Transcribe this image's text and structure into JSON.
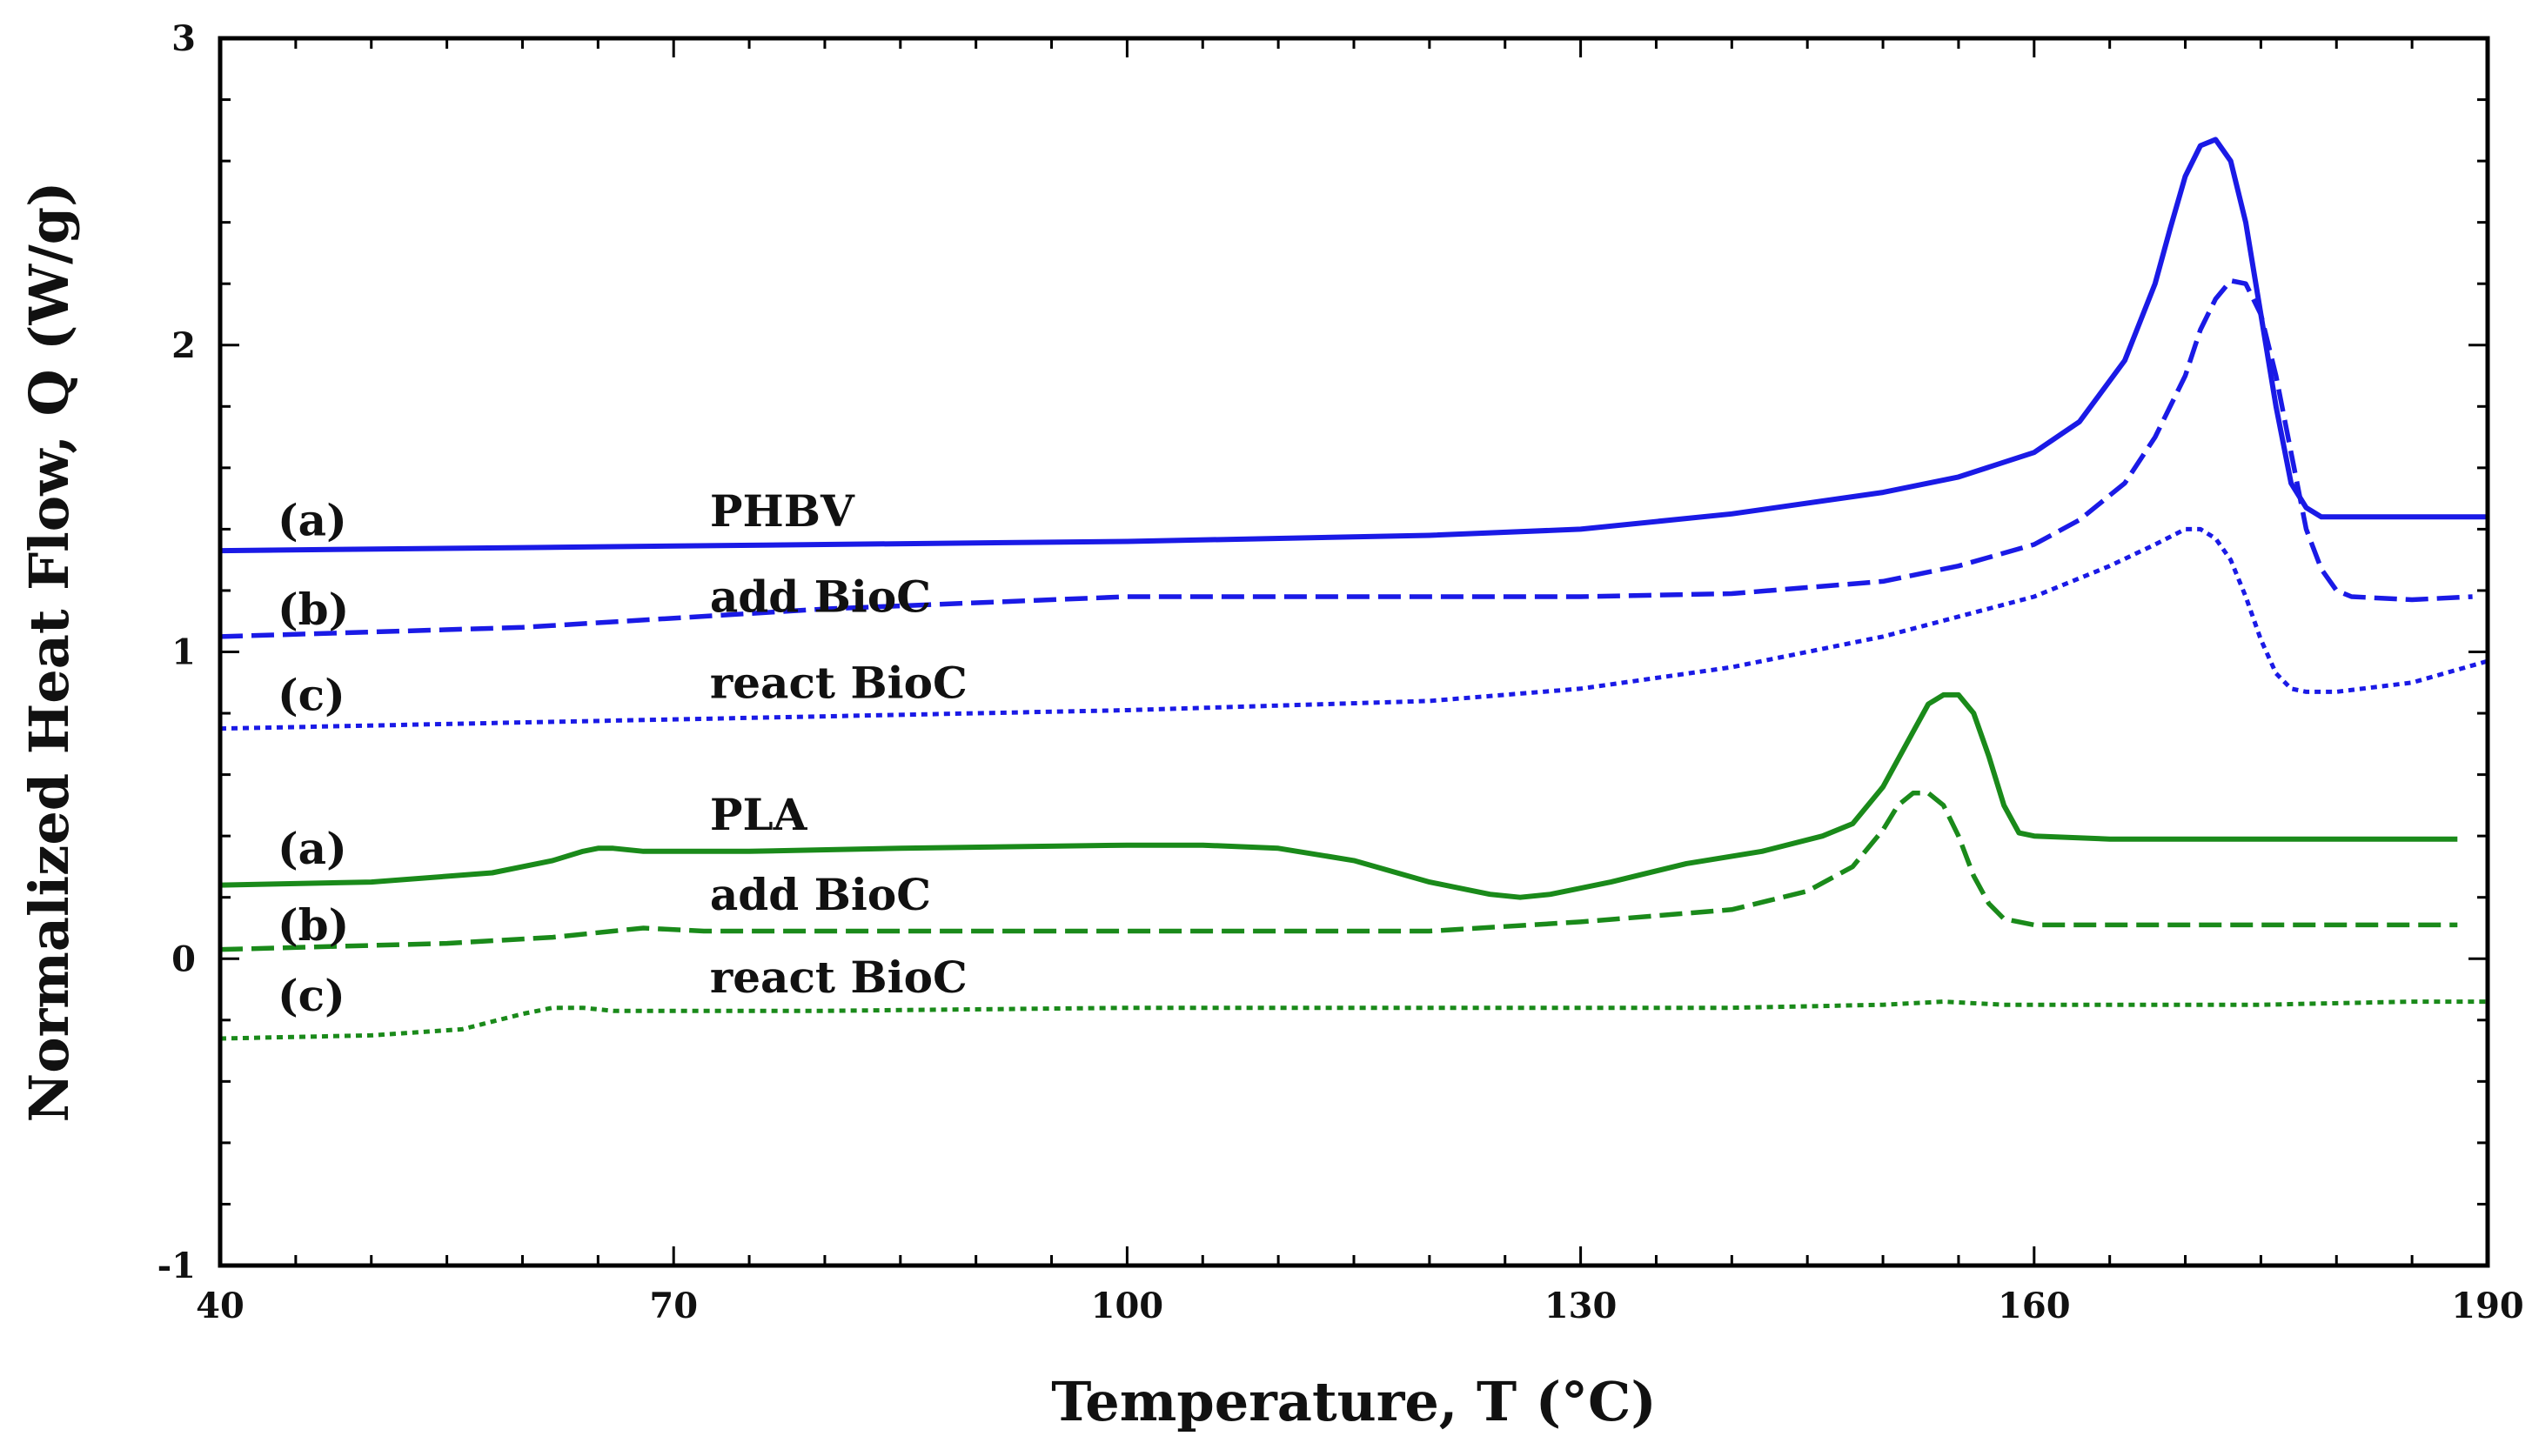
{
  "chart_data": {
    "type": "line",
    "title": "",
    "xlabel": "Temperature, T (°C)",
    "ylabel": "Normalized Heat Flow, Q (W/g)",
    "xlim": [
      40,
      190
    ],
    "ylim": [
      -1,
      3
    ],
    "x_ticks": [
      40,
      70,
      100,
      130,
      160,
      190
    ],
    "y_ticks": [
      -1,
      0,
      1,
      2,
      3
    ],
    "x_tick_labels": [
      "40",
      "70",
      "100",
      "130",
      "160",
      "190"
    ],
    "y_tick_labels": [
      "-1",
      "0",
      "1",
      "2",
      "3"
    ],
    "grid": false,
    "colors": {
      "phbv": "#1a1ae6",
      "pla": "#1a8a1a",
      "axis": "#000000"
    },
    "series": [
      {
        "name": "PHBV (a)",
        "group": "PHBV",
        "color": "#1a1ae6",
        "style": "solid",
        "x": [
          40,
          60,
          80,
          100,
          120,
          130,
          140,
          150,
          155,
          160,
          163,
          166,
          168,
          169,
          170,
          171,
          172,
          173,
          174,
          175,
          176,
          177,
          178,
          179,
          180,
          185,
          190
        ],
        "y": [
          1.33,
          1.34,
          1.35,
          1.36,
          1.38,
          1.4,
          1.45,
          1.52,
          1.57,
          1.65,
          1.75,
          1.95,
          2.2,
          2.38,
          2.55,
          2.65,
          2.67,
          2.6,
          2.4,
          2.1,
          1.8,
          1.55,
          1.47,
          1.44,
          1.44,
          1.44,
          1.44
        ]
      },
      {
        "name": "PHBV (b) add BioC",
        "group": "PHBV",
        "color": "#1a1ae6",
        "style": "dashed",
        "x": [
          40,
          60,
          80,
          100,
          120,
          130,
          140,
          150,
          155,
          160,
          163,
          166,
          168,
          170,
          171,
          172,
          173,
          174,
          175,
          176,
          177,
          178,
          179,
          180,
          181,
          185,
          189
        ],
        "y": [
          1.05,
          1.08,
          1.14,
          1.18,
          1.18,
          1.18,
          1.19,
          1.23,
          1.28,
          1.35,
          1.43,
          1.55,
          1.7,
          1.9,
          2.05,
          2.15,
          2.21,
          2.2,
          2.1,
          1.9,
          1.65,
          1.4,
          1.27,
          1.2,
          1.18,
          1.17,
          1.18
        ]
      },
      {
        "name": "PHBV (c) react BioC",
        "group": "PHBV",
        "color": "#1a1ae6",
        "style": "dotted",
        "x": [
          40,
          60,
          80,
          100,
          120,
          130,
          140,
          150,
          160,
          165,
          168,
          170,
          171,
          172,
          173,
          174,
          175,
          176,
          177,
          178,
          180,
          185,
          190
        ],
        "y": [
          0.75,
          0.77,
          0.79,
          0.81,
          0.84,
          0.88,
          0.95,
          1.05,
          1.18,
          1.28,
          1.35,
          1.4,
          1.4,
          1.37,
          1.3,
          1.18,
          1.04,
          0.93,
          0.88,
          0.87,
          0.87,
          0.9,
          0.97
        ]
      },
      {
        "name": "PLA (a)",
        "group": "PLA",
        "color": "#1a8a1a",
        "style": "solid",
        "x": [
          40,
          50,
          58,
          62,
          64,
          65,
          66,
          68,
          75,
          85,
          100,
          105,
          110,
          115,
          120,
          124,
          126,
          128,
          132,
          137,
          142,
          146,
          148,
          150,
          152,
          153,
          154,
          155,
          156,
          157,
          158,
          159,
          160,
          165,
          170,
          180,
          188
        ],
        "y": [
          0.24,
          0.25,
          0.28,
          0.32,
          0.35,
          0.36,
          0.36,
          0.35,
          0.35,
          0.36,
          0.37,
          0.37,
          0.36,
          0.32,
          0.25,
          0.21,
          0.2,
          0.21,
          0.25,
          0.31,
          0.35,
          0.4,
          0.44,
          0.56,
          0.74,
          0.83,
          0.86,
          0.86,
          0.8,
          0.66,
          0.5,
          0.41,
          0.4,
          0.39,
          0.39,
          0.39,
          0.39
        ]
      },
      {
        "name": "PLA (b) add BioC",
        "group": "PLA",
        "color": "#1a8a1a",
        "style": "dashed",
        "x": [
          40,
          55,
          62,
          66,
          68,
          72,
          80,
          100,
          120,
          130,
          140,
          145,
          148,
          150,
          151,
          152,
          153,
          154,
          155,
          156,
          157,
          158,
          160,
          170,
          180,
          188
        ],
        "y": [
          0.03,
          0.05,
          0.07,
          0.09,
          0.1,
          0.09,
          0.09,
          0.09,
          0.09,
          0.12,
          0.16,
          0.22,
          0.3,
          0.42,
          0.5,
          0.54,
          0.54,
          0.5,
          0.4,
          0.27,
          0.18,
          0.13,
          0.11,
          0.11,
          0.11,
          0.11
        ]
      },
      {
        "name": "PLA (c) react BioC",
        "group": "PLA",
        "color": "#1a8a1a",
        "style": "dotted",
        "x": [
          40,
          50,
          56,
          60,
          62,
          64,
          66,
          70,
          80,
          100,
          120,
          140,
          150,
          154,
          158,
          165,
          175,
          185,
          190
        ],
        "y": [
          -0.26,
          -0.25,
          -0.23,
          -0.18,
          -0.16,
          -0.16,
          -0.17,
          -0.17,
          -0.17,
          -0.16,
          -0.16,
          -0.16,
          -0.15,
          -0.14,
          -0.15,
          -0.15,
          -0.15,
          -0.14,
          -0.14
        ]
      }
    ],
    "annotations": [
      {
        "text": "(a)",
        "x": 43.8,
        "y": 1.38
      },
      {
        "text": "PHBV",
        "x": 72.4,
        "y": 1.41
      },
      {
        "text": "(b)",
        "x": 43.8,
        "y": 1.09
      },
      {
        "text": "add BioC",
        "x": 72.4,
        "y": 1.13
      },
      {
        "text": "(c)",
        "x": 43.8,
        "y": 0.81
      },
      {
        "text": "react BioC",
        "x": 72.4,
        "y": 0.85
      },
      {
        "text": "(a)",
        "x": 43.8,
        "y": 0.31
      },
      {
        "text": "PLA",
        "x": 72.4,
        "y": 0.42
      },
      {
        "text": "(b)",
        "x": 43.8,
        "y": 0.06
      },
      {
        "text": "add BioC",
        "x": 72.4,
        "y": 0.16
      },
      {
        "text": "(c)",
        "x": 43.8,
        "y": -0.17
      },
      {
        "text": "react BioC",
        "x": 72.4,
        "y": -0.11
      }
    ]
  }
}
